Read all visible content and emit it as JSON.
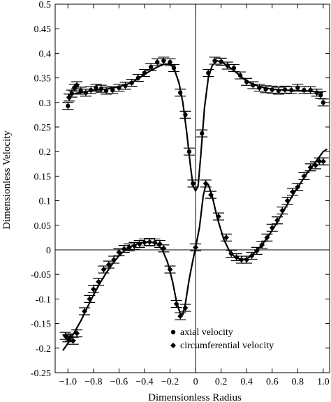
{
  "chart_data": {
    "type": "scatter",
    "title": "",
    "xlabel": "Dimensionless Radius",
    "ylabel": "Dimensionless Velocity",
    "xlim": [
      -1.1,
      1.05
    ],
    "ylim": [
      -0.25,
      0.5
    ],
    "grid": false,
    "legend_position": "bottom-right",
    "x_ticks": [
      "-1.0",
      "-0.8",
      "-0.6",
      "-0.4",
      "-0.2",
      "0",
      "0.2",
      "0.4",
      "0.6",
      "0.8",
      "1.0"
    ],
    "x_tick_values": [
      -1.0,
      -0.8,
      -0.6,
      -0.4,
      -0.2,
      0,
      0.2,
      0.4,
      0.6,
      0.8,
      1.0
    ],
    "y_ticks": [
      "-0.25",
      "-0.2",
      "-0.15",
      "-0.1",
      "-0.05",
      "0",
      "0.05",
      "0.1",
      "0.15",
      "0.2",
      "0.25",
      "0.3",
      "0.35",
      "0.4",
      "0.45",
      "0.5"
    ],
    "y_tick_values": [
      -0.25,
      -0.2,
      -0.15,
      -0.1,
      -0.05,
      0,
      0.05,
      0.1,
      0.15,
      0.2,
      0.25,
      0.3,
      0.35,
      0.4,
      0.45,
      0.5
    ],
    "reference_lines": {
      "x": 0,
      "y": 0
    },
    "series": [
      {
        "name": "axial velocity",
        "marker": "circle",
        "points": [
          {
            "x": -1.0,
            "y": 0.293
          },
          {
            "x": -0.99,
            "y": 0.31
          },
          {
            "x": -0.97,
            "y": 0.318
          },
          {
            "x": -0.95,
            "y": 0.33
          },
          {
            "x": -0.93,
            "y": 0.335
          },
          {
            "x": -0.9,
            "y": 0.324
          },
          {
            "x": -0.86,
            "y": 0.32
          },
          {
            "x": -0.82,
            "y": 0.325
          },
          {
            "x": -0.78,
            "y": 0.33
          },
          {
            "x": -0.74,
            "y": 0.328
          },
          {
            "x": -0.7,
            "y": 0.324
          },
          {
            "x": -0.65,
            "y": 0.325
          },
          {
            "x": -0.6,
            "y": 0.33
          },
          {
            "x": -0.55,
            "y": 0.334
          },
          {
            "x": -0.5,
            "y": 0.34
          },
          {
            "x": -0.45,
            "y": 0.35
          },
          {
            "x": -0.4,
            "y": 0.36
          },
          {
            "x": -0.35,
            "y": 0.372
          },
          {
            "x": -0.3,
            "y": 0.382
          },
          {
            "x": -0.25,
            "y": 0.385
          },
          {
            "x": -0.2,
            "y": 0.382
          },
          {
            "x": -0.17,
            "y": 0.37
          },
          {
            "x": -0.12,
            "y": 0.32
          },
          {
            "x": -0.08,
            "y": 0.275
          },
          {
            "x": -0.05,
            "y": 0.2
          },
          {
            "x": -0.02,
            "y": 0.135
          },
          {
            "x": 0.05,
            "y": 0.237
          },
          {
            "x": 0.1,
            "y": 0.36
          },
          {
            "x": 0.15,
            "y": 0.385
          },
          {
            "x": 0.2,
            "y": 0.383
          },
          {
            "x": 0.25,
            "y": 0.375
          },
          {
            "x": 0.3,
            "y": 0.37
          },
          {
            "x": 0.35,
            "y": 0.355
          },
          {
            "x": 0.4,
            "y": 0.342
          },
          {
            "x": 0.45,
            "y": 0.335
          },
          {
            "x": 0.5,
            "y": 0.33
          },
          {
            "x": 0.55,
            "y": 0.327
          },
          {
            "x": 0.6,
            "y": 0.326
          },
          {
            "x": 0.65,
            "y": 0.324
          },
          {
            "x": 0.7,
            "y": 0.326
          },
          {
            "x": 0.75,
            "y": 0.325
          },
          {
            "x": 0.8,
            "y": 0.33
          },
          {
            "x": 0.85,
            "y": 0.325
          },
          {
            "x": 0.9,
            "y": 0.325
          },
          {
            "x": 0.95,
            "y": 0.32
          },
          {
            "x": 0.98,
            "y": 0.315
          },
          {
            "x": 1.0,
            "y": 0.3
          }
        ]
      },
      {
        "name": "circumferential velocity",
        "marker": "diamond",
        "points": [
          {
            "x": -1.02,
            "y": -0.175
          },
          {
            "x": -1.0,
            "y": -0.18
          },
          {
            "x": -0.98,
            "y": -0.178
          },
          {
            "x": -0.96,
            "y": -0.185
          },
          {
            "x": -0.93,
            "y": -0.17
          },
          {
            "x": -0.87,
            "y": -0.125
          },
          {
            "x": -0.83,
            "y": -0.1
          },
          {
            "x": -0.8,
            "y": -0.08
          },
          {
            "x": -0.76,
            "y": -0.065
          },
          {
            "x": -0.72,
            "y": -0.04
          },
          {
            "x": -0.68,
            "y": -0.03
          },
          {
            "x": -0.64,
            "y": -0.02
          },
          {
            "x": -0.6,
            "y": -0.005
          },
          {
            "x": -0.56,
            "y": 0.002
          },
          {
            "x": -0.52,
            "y": 0.005
          },
          {
            "x": -0.48,
            "y": 0.008
          },
          {
            "x": -0.44,
            "y": 0.012
          },
          {
            "x": -0.4,
            "y": 0.015
          },
          {
            "x": -0.36,
            "y": 0.016
          },
          {
            "x": -0.32,
            "y": 0.015
          },
          {
            "x": -0.28,
            "y": 0.012
          },
          {
            "x": -0.25,
            "y": 0.003
          },
          {
            "x": -0.2,
            "y": -0.04
          },
          {
            "x": -0.15,
            "y": -0.11
          },
          {
            "x": -0.12,
            "y": -0.135
          },
          {
            "x": -0.08,
            "y": -0.118
          },
          {
            "x": 0.0,
            "y": 0.005
          },
          {
            "x": 0.08,
            "y": 0.135
          },
          {
            "x": 0.12,
            "y": 0.112
          },
          {
            "x": 0.18,
            "y": 0.068
          },
          {
            "x": 0.24,
            "y": 0.025
          },
          {
            "x": 0.28,
            "y": -0.008
          },
          {
            "x": 0.32,
            "y": -0.015
          },
          {
            "x": 0.36,
            "y": -0.02
          },
          {
            "x": 0.4,
            "y": -0.02
          },
          {
            "x": 0.44,
            "y": -0.012
          },
          {
            "x": 0.48,
            "y": -0.002
          },
          {
            "x": 0.52,
            "y": 0.01
          },
          {
            "x": 0.56,
            "y": 0.025
          },
          {
            "x": 0.6,
            "y": 0.045
          },
          {
            "x": 0.64,
            "y": 0.06
          },
          {
            "x": 0.68,
            "y": 0.08
          },
          {
            "x": 0.72,
            "y": 0.1
          },
          {
            "x": 0.76,
            "y": 0.118
          },
          {
            "x": 0.8,
            "y": 0.128
          },
          {
            "x": 0.85,
            "y": 0.15
          },
          {
            "x": 0.9,
            "y": 0.168
          },
          {
            "x": 0.94,
            "y": 0.172
          },
          {
            "x": 0.97,
            "y": 0.18
          },
          {
            "x": 1.0,
            "y": 0.18
          }
        ]
      }
    ],
    "fit_curves": [
      {
        "for_series": "axial velocity",
        "points": [
          [
            -1.0,
            0.315
          ],
          [
            -0.95,
            0.318
          ],
          [
            -0.9,
            0.32
          ],
          [
            -0.8,
            0.325
          ],
          [
            -0.7,
            0.327
          ],
          [
            -0.6,
            0.332
          ],
          [
            -0.5,
            0.34
          ],
          [
            -0.4,
            0.357
          ],
          [
            -0.35,
            0.365
          ],
          [
            -0.3,
            0.372
          ],
          [
            -0.25,
            0.378
          ],
          [
            -0.2,
            0.378
          ],
          [
            -0.17,
            0.37
          ],
          [
            -0.13,
            0.34
          ],
          [
            -0.1,
            0.3
          ],
          [
            -0.07,
            0.24
          ],
          [
            -0.04,
            0.17
          ],
          [
            -0.02,
            0.13
          ],
          [
            0.0,
            0.12
          ],
          [
            0.02,
            0.13
          ],
          [
            0.04,
            0.19
          ],
          [
            0.07,
            0.29
          ],
          [
            0.1,
            0.35
          ],
          [
            0.13,
            0.375
          ],
          [
            0.17,
            0.385
          ],
          [
            0.22,
            0.38
          ],
          [
            0.3,
            0.365
          ],
          [
            0.4,
            0.343
          ],
          [
            0.5,
            0.332
          ],
          [
            0.6,
            0.327
          ],
          [
            0.7,
            0.325
          ],
          [
            0.8,
            0.324
          ],
          [
            0.9,
            0.323
          ],
          [
            1.0,
            0.32
          ]
        ]
      },
      {
        "for_series": "circumferential velocity",
        "points": [
          [
            -1.04,
            -0.205
          ],
          [
            -1.0,
            -0.19
          ],
          [
            -0.95,
            -0.168
          ],
          [
            -0.9,
            -0.145
          ],
          [
            -0.85,
            -0.118
          ],
          [
            -0.8,
            -0.092
          ],
          [
            -0.75,
            -0.068
          ],
          [
            -0.7,
            -0.047
          ],
          [
            -0.65,
            -0.028
          ],
          [
            -0.6,
            -0.012
          ],
          [
            -0.55,
            0.0
          ],
          [
            -0.5,
            0.008
          ],
          [
            -0.45,
            0.013
          ],
          [
            -0.4,
            0.016
          ],
          [
            -0.35,
            0.016
          ],
          [
            -0.3,
            0.012
          ],
          [
            -0.26,
            0.0
          ],
          [
            -0.22,
            -0.025
          ],
          [
            -0.18,
            -0.065
          ],
          [
            -0.15,
            -0.105
          ],
          [
            -0.12,
            -0.13
          ],
          [
            -0.1,
            -0.132
          ],
          [
            -0.08,
            -0.11
          ],
          [
            -0.05,
            -0.06
          ],
          [
            -0.02,
            -0.02
          ],
          [
            0.0,
            0.005
          ],
          [
            0.03,
            0.045
          ],
          [
            0.06,
            0.11
          ],
          [
            0.08,
            0.132
          ],
          [
            0.1,
            0.133
          ],
          [
            0.13,
            0.11
          ],
          [
            0.17,
            0.065
          ],
          [
            0.22,
            0.022
          ],
          [
            0.27,
            -0.005
          ],
          [
            0.32,
            -0.017
          ],
          [
            0.37,
            -0.02
          ],
          [
            0.42,
            -0.015
          ],
          [
            0.47,
            -0.004
          ],
          [
            0.52,
            0.01
          ],
          [
            0.57,
            0.028
          ],
          [
            0.62,
            0.048
          ],
          [
            0.67,
            0.07
          ],
          [
            0.72,
            0.093
          ],
          [
            0.77,
            0.115
          ],
          [
            0.82,
            0.135
          ],
          [
            0.87,
            0.155
          ],
          [
            0.92,
            0.172
          ],
          [
            0.96,
            0.186
          ],
          [
            1.0,
            0.2
          ],
          [
            1.03,
            0.205
          ]
        ]
      }
    ],
    "legend": [
      {
        "label": "axial velocity",
        "marker": "circle"
      },
      {
        "label": "circumferential velocity",
        "marker": "diamond"
      }
    ]
  }
}
